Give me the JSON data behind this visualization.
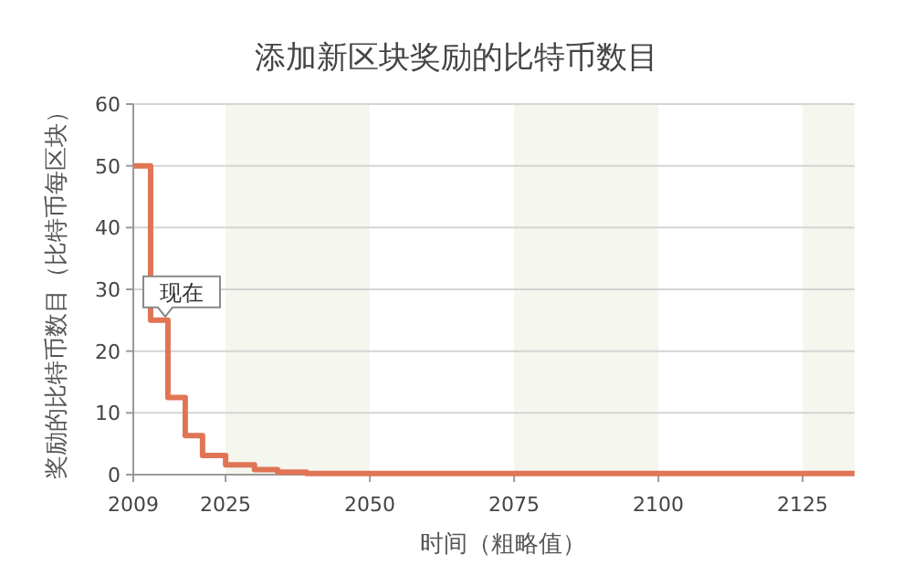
{
  "chart_data": {
    "type": "step",
    "title": "添加新区块奖励的比特币数目",
    "xlabel": "时间（粗略值）",
    "ylabel": "奖励的比特币数目（比特币每区块）",
    "x": [
      2009,
      2012,
      2015,
      2018,
      2021,
      2025,
      2030,
      2034,
      2039,
      2134
    ],
    "series": [
      {
        "color": "#e07555",
        "values": [
          50,
          25,
          12.5,
          6.3,
          3.1,
          1.6,
          0.8,
          0.4,
          0.2,
          0.2
        ]
      }
    ],
    "xlim": [
      2009,
      2134
    ],
    "xticks": [
      2009,
      2025,
      2050,
      2075,
      2100,
      2125
    ],
    "ylim": [
      0,
      60
    ],
    "yticks": [
      0,
      10,
      20,
      30,
      40,
      50,
      60
    ],
    "grid": "y",
    "bands": [
      {
        "axis": "x",
        "from": 2025,
        "to": 2050,
        "color": "#f5f6ed"
      },
      {
        "axis": "x",
        "from": 2075,
        "to": 2100,
        "color": "#f5f6ed"
      },
      {
        "axis": "x",
        "from": 2125,
        "to": 2134,
        "color": "#f5f6ed"
      }
    ],
    "annotations": [
      {
        "text": "现在",
        "x": 2012,
        "y": 25
      }
    ]
  }
}
